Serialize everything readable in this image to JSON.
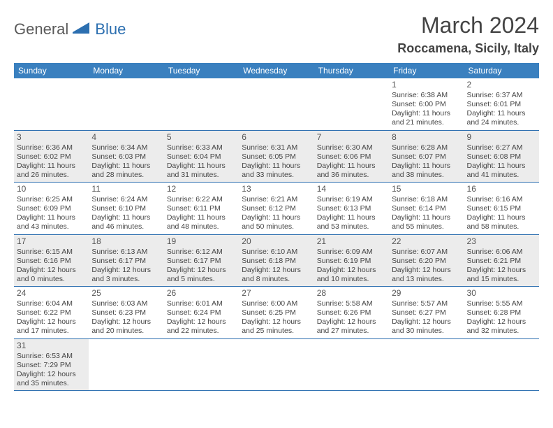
{
  "logo": {
    "part1": "General",
    "part2": "Blue"
  },
  "title": "March 2024",
  "location": "Roccamena, Sicily, Italy",
  "colors": {
    "header_bg": "#3a80bf",
    "header_text": "#ffffff",
    "border": "#2c6fb0",
    "shade_bg": "#ececec",
    "text": "#444444"
  },
  "weekdays": [
    "Sunday",
    "Monday",
    "Tuesday",
    "Wednesday",
    "Thursday",
    "Friday",
    "Saturday"
  ],
  "weeks": [
    {
      "shade": false,
      "days": [
        null,
        null,
        null,
        null,
        null,
        {
          "n": "1",
          "sr": "Sunrise: 6:38 AM",
          "ss": "Sunset: 6:00 PM",
          "d1": "Daylight: 11 hours",
          "d2": "and 21 minutes."
        },
        {
          "n": "2",
          "sr": "Sunrise: 6:37 AM",
          "ss": "Sunset: 6:01 PM",
          "d1": "Daylight: 11 hours",
          "d2": "and 24 minutes."
        }
      ]
    },
    {
      "shade": true,
      "days": [
        {
          "n": "3",
          "sr": "Sunrise: 6:36 AM",
          "ss": "Sunset: 6:02 PM",
          "d1": "Daylight: 11 hours",
          "d2": "and 26 minutes."
        },
        {
          "n": "4",
          "sr": "Sunrise: 6:34 AM",
          "ss": "Sunset: 6:03 PM",
          "d1": "Daylight: 11 hours",
          "d2": "and 28 minutes."
        },
        {
          "n": "5",
          "sr": "Sunrise: 6:33 AM",
          "ss": "Sunset: 6:04 PM",
          "d1": "Daylight: 11 hours",
          "d2": "and 31 minutes."
        },
        {
          "n": "6",
          "sr": "Sunrise: 6:31 AM",
          "ss": "Sunset: 6:05 PM",
          "d1": "Daylight: 11 hours",
          "d2": "and 33 minutes."
        },
        {
          "n": "7",
          "sr": "Sunrise: 6:30 AM",
          "ss": "Sunset: 6:06 PM",
          "d1": "Daylight: 11 hours",
          "d2": "and 36 minutes."
        },
        {
          "n": "8",
          "sr": "Sunrise: 6:28 AM",
          "ss": "Sunset: 6:07 PM",
          "d1": "Daylight: 11 hours",
          "d2": "and 38 minutes."
        },
        {
          "n": "9",
          "sr": "Sunrise: 6:27 AM",
          "ss": "Sunset: 6:08 PM",
          "d1": "Daylight: 11 hours",
          "d2": "and 41 minutes."
        }
      ]
    },
    {
      "shade": false,
      "days": [
        {
          "n": "10",
          "sr": "Sunrise: 6:25 AM",
          "ss": "Sunset: 6:09 PM",
          "d1": "Daylight: 11 hours",
          "d2": "and 43 minutes."
        },
        {
          "n": "11",
          "sr": "Sunrise: 6:24 AM",
          "ss": "Sunset: 6:10 PM",
          "d1": "Daylight: 11 hours",
          "d2": "and 46 minutes."
        },
        {
          "n": "12",
          "sr": "Sunrise: 6:22 AM",
          "ss": "Sunset: 6:11 PM",
          "d1": "Daylight: 11 hours",
          "d2": "and 48 minutes."
        },
        {
          "n": "13",
          "sr": "Sunrise: 6:21 AM",
          "ss": "Sunset: 6:12 PM",
          "d1": "Daylight: 11 hours",
          "d2": "and 50 minutes."
        },
        {
          "n": "14",
          "sr": "Sunrise: 6:19 AM",
          "ss": "Sunset: 6:13 PM",
          "d1": "Daylight: 11 hours",
          "d2": "and 53 minutes."
        },
        {
          "n": "15",
          "sr": "Sunrise: 6:18 AM",
          "ss": "Sunset: 6:14 PM",
          "d1": "Daylight: 11 hours",
          "d2": "and 55 minutes."
        },
        {
          "n": "16",
          "sr": "Sunrise: 6:16 AM",
          "ss": "Sunset: 6:15 PM",
          "d1": "Daylight: 11 hours",
          "d2": "and 58 minutes."
        }
      ]
    },
    {
      "shade": true,
      "days": [
        {
          "n": "17",
          "sr": "Sunrise: 6:15 AM",
          "ss": "Sunset: 6:16 PM",
          "d1": "Daylight: 12 hours",
          "d2": "and 0 minutes."
        },
        {
          "n": "18",
          "sr": "Sunrise: 6:13 AM",
          "ss": "Sunset: 6:17 PM",
          "d1": "Daylight: 12 hours",
          "d2": "and 3 minutes."
        },
        {
          "n": "19",
          "sr": "Sunrise: 6:12 AM",
          "ss": "Sunset: 6:17 PM",
          "d1": "Daylight: 12 hours",
          "d2": "and 5 minutes."
        },
        {
          "n": "20",
          "sr": "Sunrise: 6:10 AM",
          "ss": "Sunset: 6:18 PM",
          "d1": "Daylight: 12 hours",
          "d2": "and 8 minutes."
        },
        {
          "n": "21",
          "sr": "Sunrise: 6:09 AM",
          "ss": "Sunset: 6:19 PM",
          "d1": "Daylight: 12 hours",
          "d2": "and 10 minutes."
        },
        {
          "n": "22",
          "sr": "Sunrise: 6:07 AM",
          "ss": "Sunset: 6:20 PM",
          "d1": "Daylight: 12 hours",
          "d2": "and 13 minutes."
        },
        {
          "n": "23",
          "sr": "Sunrise: 6:06 AM",
          "ss": "Sunset: 6:21 PM",
          "d1": "Daylight: 12 hours",
          "d2": "and 15 minutes."
        }
      ]
    },
    {
      "shade": false,
      "days": [
        {
          "n": "24",
          "sr": "Sunrise: 6:04 AM",
          "ss": "Sunset: 6:22 PM",
          "d1": "Daylight: 12 hours",
          "d2": "and 17 minutes."
        },
        {
          "n": "25",
          "sr": "Sunrise: 6:03 AM",
          "ss": "Sunset: 6:23 PM",
          "d1": "Daylight: 12 hours",
          "d2": "and 20 minutes."
        },
        {
          "n": "26",
          "sr": "Sunrise: 6:01 AM",
          "ss": "Sunset: 6:24 PM",
          "d1": "Daylight: 12 hours",
          "d2": "and 22 minutes."
        },
        {
          "n": "27",
          "sr": "Sunrise: 6:00 AM",
          "ss": "Sunset: 6:25 PM",
          "d1": "Daylight: 12 hours",
          "d2": "and 25 minutes."
        },
        {
          "n": "28",
          "sr": "Sunrise: 5:58 AM",
          "ss": "Sunset: 6:26 PM",
          "d1": "Daylight: 12 hours",
          "d2": "and 27 minutes."
        },
        {
          "n": "29",
          "sr": "Sunrise: 5:57 AM",
          "ss": "Sunset: 6:27 PM",
          "d1": "Daylight: 12 hours",
          "d2": "and 30 minutes."
        },
        {
          "n": "30",
          "sr": "Sunrise: 5:55 AM",
          "ss": "Sunset: 6:28 PM",
          "d1": "Daylight: 12 hours",
          "d2": "and 32 minutes."
        }
      ]
    },
    {
      "shade": true,
      "days": [
        {
          "n": "31",
          "sr": "Sunrise: 6:53 AM",
          "ss": "Sunset: 7:29 PM",
          "d1": "Daylight: 12 hours",
          "d2": "and 35 minutes."
        },
        null,
        null,
        null,
        null,
        null,
        null
      ]
    }
  ]
}
